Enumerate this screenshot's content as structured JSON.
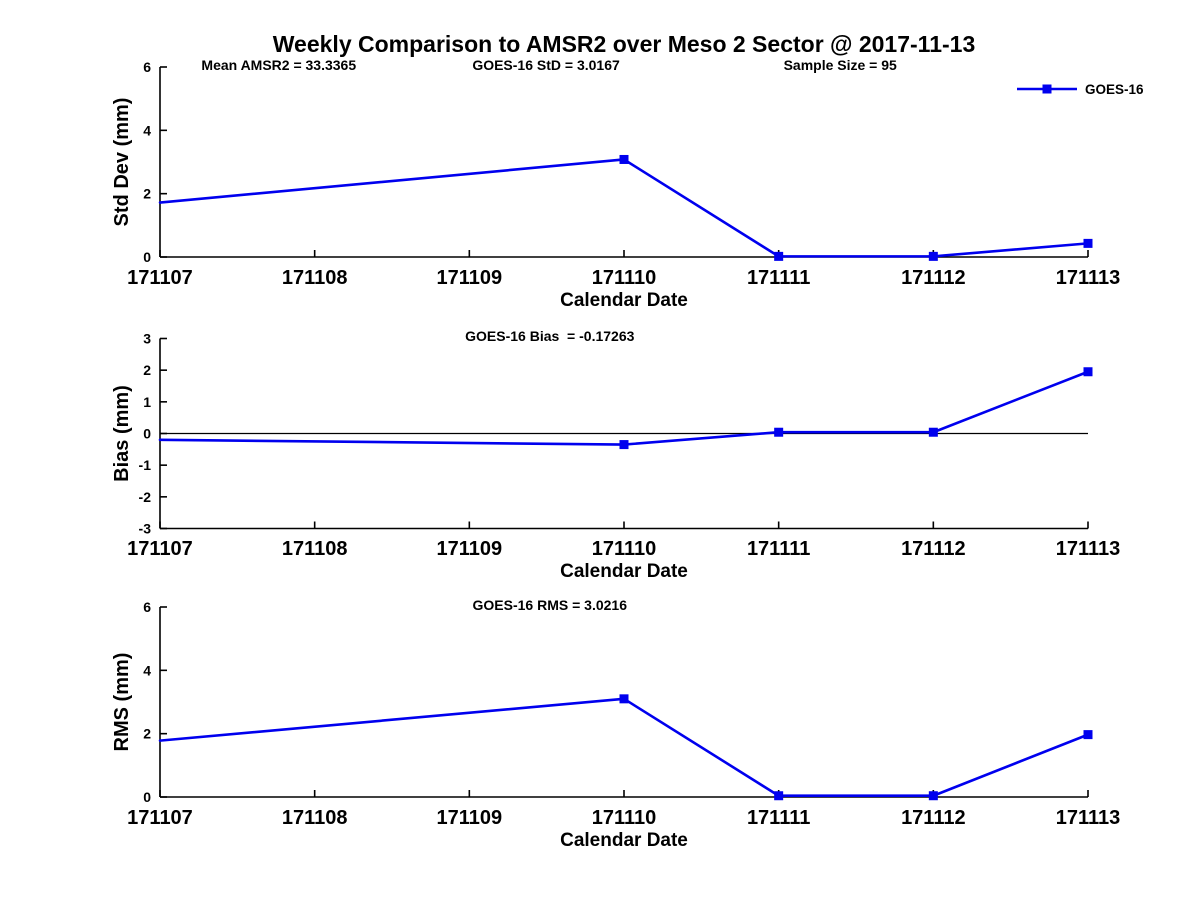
{
  "title": "Weekly Comparison to AMSR2 over Meso 2 Sector @ 2017-11-13",
  "legend": {
    "label": "GOES-16"
  },
  "colors": {
    "series": "#0000EE",
    "axis": "#000000",
    "text": "#000000"
  },
  "chart_data": [
    {
      "type": "line",
      "ylabel": "Std Dev (mm)",
      "xlabel": "Calendar Date",
      "ylim": [
        0,
        6
      ],
      "yticks": [
        0,
        2,
        4,
        6
      ],
      "xlim": [
        171107,
        171113
      ],
      "xticks": [
        171107,
        171108,
        171109,
        171110,
        171111,
        171112,
        171113
      ],
      "xtick_labels": [
        "171107",
        "171108",
        "171109",
        "171110",
        "171111",
        "171112",
        "171113"
      ],
      "annotations": [
        {
          "text": "Mean AMSR2 = 33.3365",
          "fx": 0.128
        },
        {
          "text": "GOES-16 StD = 3.0167",
          "fx": 0.416
        },
        {
          "text": "Sample Size = 95",
          "fx": 0.733
        }
      ],
      "zero_line": false,
      "legend_visible": true,
      "series": [
        {
          "name": "GOES-16",
          "x": [
            171107,
            171110,
            171111,
            171112,
            171113
          ],
          "y": [
            1.72,
            3.08,
            0.02,
            0.02,
            0.43
          ],
          "marker_visible": [
            false,
            true,
            true,
            true,
            true
          ]
        }
      ]
    },
    {
      "type": "line",
      "ylabel": "Bias (mm)",
      "xlabel": "Calendar Date",
      "ylim": [
        -3,
        3
      ],
      "yticks": [
        -3,
        -2,
        -1,
        0,
        1,
        2,
        3
      ],
      "xlim": [
        171107,
        171113
      ],
      "xticks": [
        171107,
        171108,
        171109,
        171110,
        171111,
        171112,
        171113
      ],
      "xtick_labels": [
        "171107",
        "171108",
        "171109",
        "171110",
        "171111",
        "171112",
        "171113"
      ],
      "annotations": [
        {
          "text": "GOES-16 Bias  = -0.17263",
          "fx": 0.42
        }
      ],
      "zero_line": true,
      "legend_visible": false,
      "series": [
        {
          "name": "GOES-16",
          "x": [
            171107,
            171110,
            171111,
            171112,
            171113
          ],
          "y": [
            -0.2,
            -0.35,
            0.04,
            0.04,
            1.95
          ],
          "marker_visible": [
            false,
            true,
            true,
            true,
            true
          ]
        }
      ]
    },
    {
      "type": "line",
      "ylabel": "RMS (mm)",
      "xlabel": "Calendar Date",
      "ylim": [
        0,
        6
      ],
      "yticks": [
        0,
        2,
        4,
        6
      ],
      "xlim": [
        171107,
        171113
      ],
      "xticks": [
        171107,
        171108,
        171109,
        171110,
        171111,
        171112,
        171113
      ],
      "xtick_labels": [
        "171107",
        "171108",
        "171109",
        "171110",
        "171111",
        "171112",
        "171113"
      ],
      "annotations": [
        {
          "text": "GOES-16 RMS = 3.0216",
          "fx": 0.42
        }
      ],
      "zero_line": false,
      "legend_visible": false,
      "series": [
        {
          "name": "GOES-16",
          "x": [
            171107,
            171110,
            171111,
            171112,
            171113
          ],
          "y": [
            1.78,
            3.1,
            0.04,
            0.04,
            1.97
          ],
          "marker_visible": [
            false,
            true,
            true,
            true,
            true
          ]
        }
      ]
    }
  ]
}
